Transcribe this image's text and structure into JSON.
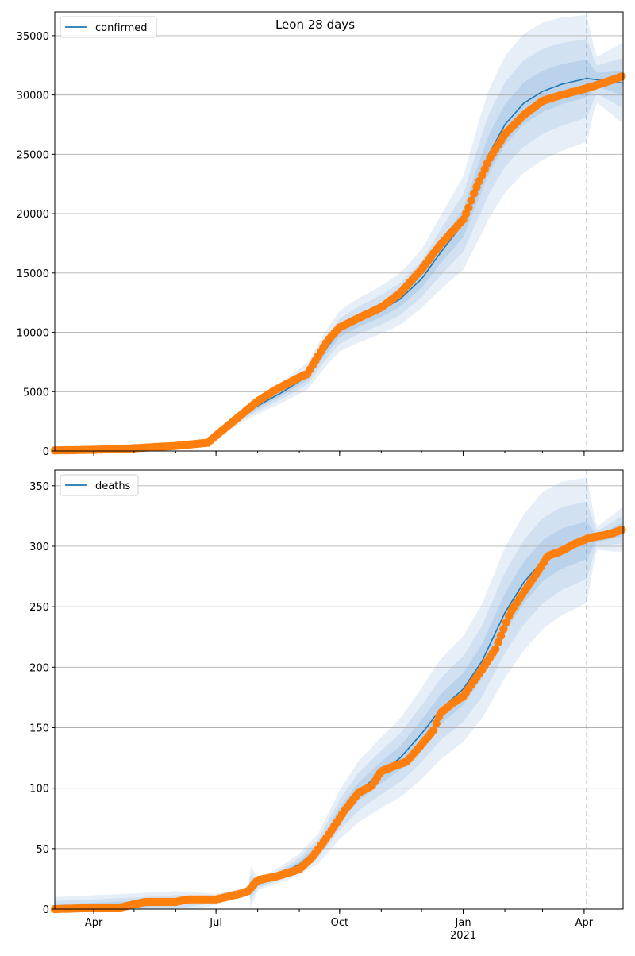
{
  "figure": {
    "title": "Leon 28 days"
  },
  "chart_data": [
    {
      "type": "line",
      "legend": "top-left",
      "grid": "y",
      "series": [
        {
          "name": "confirmed",
          "color": "#1f77b4"
        },
        {
          "color": "#ff7f0e"
        }
      ],
      "ylim": [
        0,
        37000
      ],
      "yticks": [
        0,
        5000,
        10000,
        15000,
        20000,
        25000,
        30000,
        35000
      ],
      "xlim": [
        "2020-03-03",
        "2021-04-30"
      ],
      "forecast_start": "2021-04-03",
      "model_points": [
        [
          "2020-03-03",
          60
        ],
        [
          "2020-06-20",
          500
        ],
        [
          "2020-07-01",
          1300
        ],
        [
          "2020-07-15",
          2500
        ],
        [
          "2020-08-01",
          3800
        ],
        [
          "2020-08-20",
          5000
        ],
        [
          "2020-09-07",
          6300
        ],
        [
          "2020-09-20",
          8500
        ],
        [
          "2020-10-01",
          10100
        ],
        [
          "2020-10-15",
          11000
        ],
        [
          "2020-11-01",
          11900
        ],
        [
          "2020-11-15",
          12800
        ],
        [
          "2020-12-01",
          14500
        ],
        [
          "2020-12-15",
          16700
        ],
        [
          "2021-01-01",
          19200
        ],
        [
          "2021-01-10",
          22000
        ],
        [
          "2021-01-20",
          25000
        ],
        [
          "2021-02-01",
          27500
        ],
        [
          "2021-02-15",
          29300
        ],
        [
          "2021-03-01",
          30300
        ],
        [
          "2021-03-15",
          30900
        ],
        [
          "2021-04-03",
          31400
        ],
        [
          "2021-04-30",
          31000
        ]
      ],
      "observed_points": [
        [
          "2020-03-03",
          50
        ],
        [
          "2020-04-01",
          100
        ],
        [
          "2020-05-01",
          230
        ],
        [
          "2020-06-01",
          430
        ],
        [
          "2020-06-25",
          700
        ],
        [
          "2020-07-01",
          1300
        ],
        [
          "2020-07-15",
          2600
        ],
        [
          "2020-08-01",
          4200
        ],
        [
          "2020-08-15",
          5200
        ],
        [
          "2020-09-01",
          6200
        ],
        [
          "2020-09-07",
          6500
        ],
        [
          "2020-09-15",
          8000
        ],
        [
          "2020-09-22",
          9300
        ],
        [
          "2020-10-01",
          10400
        ],
        [
          "2020-10-15",
          11200
        ],
        [
          "2020-11-01",
          12100
        ],
        [
          "2020-11-15",
          13300
        ],
        [
          "2020-12-01",
          15300
        ],
        [
          "2020-12-15",
          17400
        ],
        [
          "2021-01-01",
          19500
        ],
        [
          "2021-01-05",
          20500
        ],
        [
          "2021-01-10",
          22000
        ],
        [
          "2021-01-20",
          24500
        ],
        [
          "2021-02-01",
          26700
        ],
        [
          "2021-02-15",
          28300
        ],
        [
          "2021-03-01",
          29500
        ],
        [
          "2021-03-15",
          30000
        ],
        [
          "2021-04-01",
          30500
        ],
        [
          "2021-04-15",
          31000
        ],
        [
          "2021-04-30",
          31600
        ]
      ],
      "band_points": [
        [
          "2020-03-03",
          0,
          0.02
        ],
        [
          "2020-06-01",
          0.05,
          0.1
        ],
        [
          "2020-07-01",
          0.1,
          0.18
        ],
        [
          "2020-09-01",
          0.11,
          0.18
        ],
        [
          "2020-10-01",
          0.1,
          0.17
        ],
        [
          "2020-12-01",
          0.1,
          0.17
        ],
        [
          "2021-01-15",
          0.13,
          0.22
        ],
        [
          "2021-02-15",
          0.12,
          0.2
        ],
        [
          "2021-04-03",
          0.1,
          0.17
        ],
        [
          "2021-04-10",
          0.02,
          0.06
        ],
        [
          "2021-04-30",
          0.03,
          0.11
        ]
      ]
    },
    {
      "type": "line",
      "legend": "top-left",
      "grid": "y",
      "series": [
        {
          "name": "deaths",
          "color": "#1f77b4"
        },
        {
          "color": "#ff7f0e"
        }
      ],
      "ylim": [
        0,
        363
      ],
      "yticks": [
        0,
        50,
        100,
        150,
        200,
        250,
        300,
        350
      ],
      "xlim": [
        "2020-03-03",
        "2021-04-30"
      ],
      "xticks": [
        {
          "date": "2020-04-01",
          "label": "Apr"
        },
        {
          "date": "2020-07-01",
          "label": "Jul"
        },
        {
          "date": "2020-10-01",
          "label": "Oct"
        },
        {
          "date": "2021-01-01",
          "label": "Jan",
          "sublabel": "2021"
        },
        {
          "date": "2021-04-01",
          "label": "Apr"
        }
      ],
      "forecast_start": "2021-04-03",
      "model_points": [
        [
          "2020-03-03",
          1
        ],
        [
          "2020-05-01",
          4
        ],
        [
          "2020-07-01",
          8
        ],
        [
          "2020-07-20",
          15
        ],
        [
          "2020-08-15",
          27
        ],
        [
          "2020-09-01",
          37
        ],
        [
          "2020-09-15",
          50
        ],
        [
          "2020-10-01",
          78
        ],
        [
          "2020-10-15",
          97
        ],
        [
          "2020-11-01",
          113
        ],
        [
          "2020-11-15",
          125
        ],
        [
          "2020-12-01",
          145
        ],
        [
          "2020-12-15",
          165
        ],
        [
          "2021-01-01",
          182
        ],
        [
          "2021-01-15",
          205
        ],
        [
          "2021-02-01",
          245
        ],
        [
          "2021-02-15",
          270
        ],
        [
          "2021-03-01",
          288
        ],
        [
          "2021-03-15",
          298
        ],
        [
          "2021-04-03",
          305
        ],
        [
          "2021-04-15",
          308
        ],
        [
          "2021-04-30",
          314
        ]
      ],
      "observed_points": [
        [
          "2020-03-03",
          0
        ],
        [
          "2020-04-01",
          1
        ],
        [
          "2020-04-20",
          1
        ],
        [
          "2020-05-01",
          4
        ],
        [
          "2020-05-10",
          6
        ],
        [
          "2020-06-01",
          6
        ],
        [
          "2020-06-10",
          8
        ],
        [
          "2020-07-01",
          8
        ],
        [
          "2020-07-20",
          13
        ],
        [
          "2020-07-25",
          15
        ],
        [
          "2020-08-01",
          24
        ],
        [
          "2020-08-15",
          27
        ],
        [
          "2020-09-01",
          33
        ],
        [
          "2020-09-10",
          42
        ],
        [
          "2020-09-20",
          57
        ],
        [
          "2020-09-28",
          70
        ],
        [
          "2020-10-05",
          82
        ],
        [
          "2020-10-15",
          96
        ],
        [
          "2020-10-25",
          102
        ],
        [
          "2020-11-01",
          114
        ],
        [
          "2020-11-10",
          118
        ],
        [
          "2020-11-20",
          122
        ],
        [
          "2020-12-01",
          136
        ],
        [
          "2020-12-10",
          148
        ],
        [
          "2020-12-15",
          162
        ],
        [
          "2020-12-25",
          171
        ],
        [
          "2021-01-01",
          176
        ],
        [
          "2021-01-15",
          198
        ],
        [
          "2021-01-25",
          215
        ],
        [
          "2021-02-05",
          245
        ],
        [
          "2021-02-15",
          262
        ],
        [
          "2021-02-25",
          278
        ],
        [
          "2021-03-05",
          292
        ],
        [
          "2021-03-15",
          296
        ],
        [
          "2021-03-25",
          302
        ],
        [
          "2021-04-05",
          307
        ],
        [
          "2021-04-20",
          310
        ],
        [
          "2021-04-30",
          314
        ]
      ],
      "band_points": [
        [
          "2020-03-03",
          4,
          9
        ],
        [
          "2020-06-01",
          4,
          9
        ],
        [
          "2020-08-01",
          0.1,
          0.22
        ],
        [
          "2020-10-01",
          0.12,
          0.26
        ],
        [
          "2020-12-01",
          0.12,
          0.26
        ],
        [
          "2021-02-01",
          0.1,
          0.22
        ],
        [
          "2021-04-03",
          0.06,
          0.17
        ],
        [
          "2021-04-10",
          0.01,
          0.03
        ],
        [
          "2021-04-30",
          0.01,
          0.06
        ]
      ]
    }
  ]
}
